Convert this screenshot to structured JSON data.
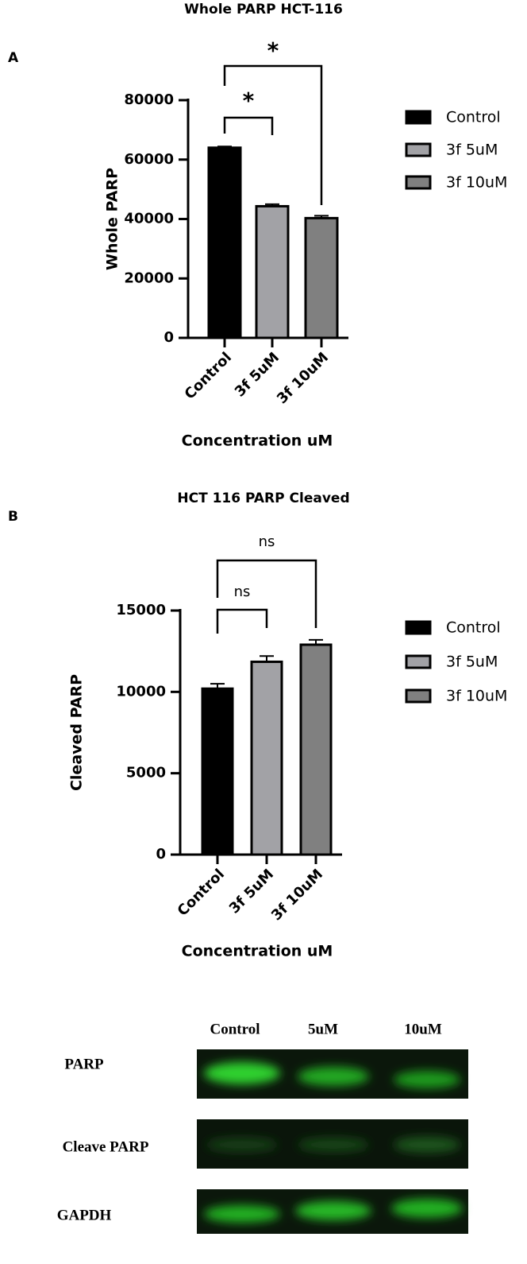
{
  "chart_data": [
    {
      "type": "bar",
      "panel": "A",
      "title": "Whole PARP HCT-116",
      "y_label": "Whole PARP",
      "x_label": "Concentration uM",
      "categories": [
        "Control",
        "3f 5uM",
        "3f 10uM"
      ],
      "values": [
        64000,
        44300,
        40300
      ],
      "errors": [
        400,
        700,
        800
      ],
      "colors": [
        "#000000",
        "#a2a2a6",
        "#808080"
      ],
      "ylim": [
        0,
        80000
      ],
      "yticks": [
        0,
        20000,
        40000,
        60000,
        80000
      ],
      "annotations": [
        "*",
        "*"
      ],
      "legend": "right"
    },
    {
      "type": "bar",
      "panel": "B",
      "title": "HCT 116 PARP Cleaved",
      "y_label": "Cleaved PARP",
      "x_label": "Concentration uM",
      "categories": [
        "Control",
        "3f 5uM",
        "3f 10uM"
      ],
      "values": [
        10200,
        11850,
        12900
      ],
      "errors": [
        300,
        350,
        300
      ],
      "colors": [
        "#000000",
        "#a2a2a6",
        "#808080"
      ],
      "ylim": [
        0,
        15000
      ],
      "yticks": [
        0,
        5000,
        10000,
        15000
      ],
      "annotations": [
        "ns",
        "ns"
      ],
      "legend": "right"
    }
  ],
  "blot": {
    "lanes": [
      "Control",
      "5uM",
      "10uM"
    ],
    "rows": [
      "PARP",
      "Cleave PARP",
      "GAPDH"
    ]
  }
}
